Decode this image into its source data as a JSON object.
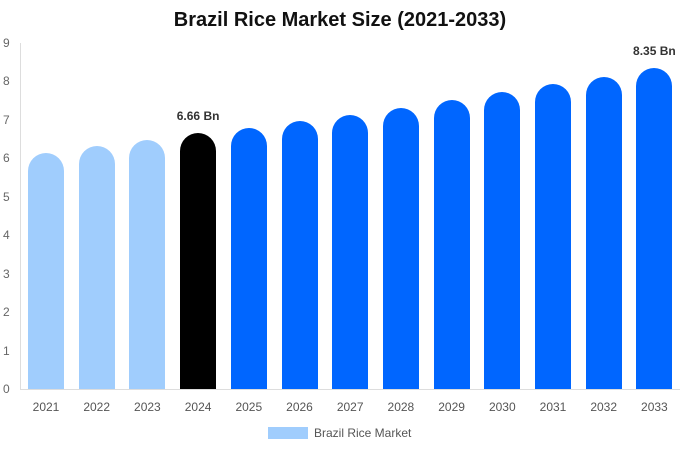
{
  "chart_data": {
    "type": "bar",
    "title": "Brazil Rice Market Size (2021-2033)",
    "xlabel": "",
    "ylabel": "",
    "ylim": [
      0,
      9
    ],
    "yticks": [
      0,
      1,
      2,
      3,
      4,
      5,
      6,
      7,
      8,
      9
    ],
    "grid": false,
    "legend_position": "bottom",
    "categories": [
      "2021",
      "2022",
      "2023",
      "2024",
      "2025",
      "2026",
      "2027",
      "2028",
      "2029",
      "2030",
      "2031",
      "2032",
      "2033"
    ],
    "series": [
      {
        "name": "Brazil Rice Market",
        "values": [
          6.15,
          6.31,
          6.47,
          6.66,
          6.8,
          6.98,
          7.14,
          7.32,
          7.53,
          7.73,
          7.94,
          8.12,
          8.35
        ]
      }
    ],
    "bar_colors": [
      "#a0cdfd",
      "#a0cdfd",
      "#a0cdfd",
      "#000000",
      "#0066ff",
      "#0066ff",
      "#0066ff",
      "#0066ff",
      "#0066ff",
      "#0066ff",
      "#0066ff",
      "#0066ff",
      "#0066ff"
    ],
    "annotations": [
      {
        "category": "2024",
        "text": "6.66 Bn"
      },
      {
        "category": "2033",
        "text": "8.35 Bn"
      }
    ]
  },
  "legend": {
    "label": "Brazil Rice Market",
    "color": "#a0cdfd"
  }
}
